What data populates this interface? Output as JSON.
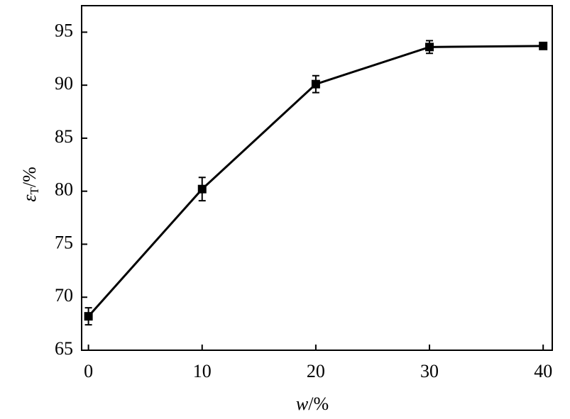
{
  "chart_data": {
    "type": "line",
    "xlabel": "w",
    "xlabel_unit": "/%",
    "ylabel": "ε",
    "ylabel_sub": "T",
    "ylabel_unit": "/%",
    "x": [
      0,
      10,
      20,
      30,
      40
    ],
    "values": [
      68.2,
      80.2,
      90.1,
      93.6,
      93.7
    ],
    "errors": [
      0.8,
      1.1,
      0.8,
      0.6,
      0.3
    ],
    "color": "#000000",
    "xlim": [
      -0.6,
      40.8
    ],
    "xticks": [
      0,
      10,
      20,
      30,
      40
    ],
    "ylim": [
      65,
      97.5
    ],
    "yticks": [
      65,
      70,
      75,
      80,
      85,
      90,
      95
    ],
    "grid": false
  }
}
